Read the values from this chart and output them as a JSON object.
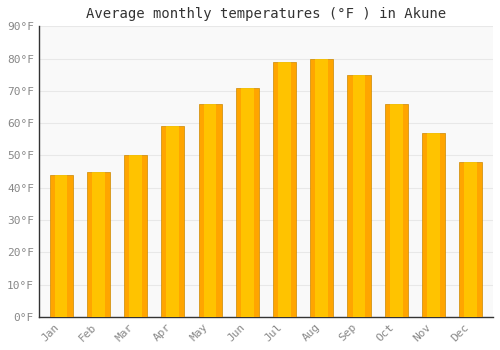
{
  "title": "Average monthly temperatures (°F ) in Akune",
  "months": [
    "Jan",
    "Feb",
    "Mar",
    "Apr",
    "May",
    "Jun",
    "Jul",
    "Aug",
    "Sep",
    "Oct",
    "Nov",
    "Dec"
  ],
  "values": [
    44,
    45,
    50,
    59,
    66,
    71,
    79,
    80,
    75,
    66,
    57,
    48
  ],
  "bar_color": "#FFA500",
  "bar_highlight": "#FFD000",
  "ylim": [
    0,
    90
  ],
  "yticks": [
    0,
    10,
    20,
    30,
    40,
    50,
    60,
    70,
    80,
    90
  ],
  "ytick_labels": [
    "0°F",
    "10°F",
    "20°F",
    "30°F",
    "40°F",
    "50°F",
    "60°F",
    "70°F",
    "80°F",
    "90°F"
  ],
  "bg_color": "#ffffff",
  "plot_bg_color": "#f9f9f9",
  "grid_color": "#e8e8e8",
  "title_fontsize": 10,
  "tick_fontsize": 8,
  "font_family": "monospace"
}
